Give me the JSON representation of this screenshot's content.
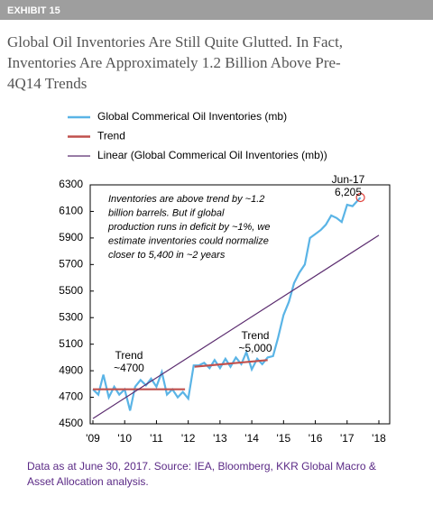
{
  "header": {
    "label": "EXHIBIT 15"
  },
  "chart_data": {
    "type": "line",
    "title": [
      "Global Oil Inventories Are Still Quite Glutted. In Fact,",
      "Inventories Are Approximately 1.2 Billion Above Pre-",
      "4Q14 Trends"
    ],
    "xlim": [
      2009,
      2018
    ],
    "xticks": [
      {
        "value": 2009,
        "label": "'09"
      },
      {
        "value": 2010,
        "label": "'10"
      },
      {
        "value": 2011,
        "label": "'11"
      },
      {
        "value": 2012,
        "label": "'12"
      },
      {
        "value": 2013,
        "label": "'13"
      },
      {
        "value": 2014,
        "label": "'14"
      },
      {
        "value": 2015,
        "label": "'15"
      },
      {
        "value": 2016,
        "label": "'16"
      },
      {
        "value": 2017,
        "label": "'17"
      },
      {
        "value": 2018,
        "label": "'18"
      }
    ],
    "ylim": [
      4500,
      6300
    ],
    "yticks": [
      4500,
      4700,
      4900,
      5100,
      5300,
      5500,
      5700,
      5900,
      6100,
      6300
    ],
    "grid": false,
    "series": [
      {
        "name": "Global Commerical Oil Inventories (mb)",
        "color": "#5ab4e6",
        "x": [
          2009.0,
          2009.17,
          2009.33,
          2009.5,
          2009.67,
          2009.83,
          2010.0,
          2010.17,
          2010.33,
          2010.5,
          2010.67,
          2010.83,
          2011.0,
          2011.17,
          2011.33,
          2011.5,
          2011.67,
          2011.83,
          2012.0,
          2012.17,
          2012.33,
          2012.5,
          2012.67,
          2012.83,
          2013.0,
          2013.17,
          2013.33,
          2013.5,
          2013.67,
          2013.83,
          2014.0,
          2014.17,
          2014.33,
          2014.5,
          2014.67,
          2014.83,
          2015.0,
          2015.17,
          2015.33,
          2015.5,
          2015.67,
          2015.83,
          2016.0,
          2016.17,
          2016.33,
          2016.5,
          2016.67,
          2016.83,
          2017.0,
          2017.17,
          2017.42
        ],
        "values": [
          4760,
          4720,
          4870,
          4700,
          4780,
          4720,
          4760,
          4600,
          4780,
          4830,
          4790,
          4840,
          4780,
          4890,
          4720,
          4760,
          4700,
          4740,
          4690,
          4940,
          4940,
          4960,
          4920,
          4980,
          4920,
          4990,
          4930,
          5000,
          4950,
          5040,
          4910,
          4990,
          4950,
          5000,
          5010,
          5150,
          5320,
          5420,
          5560,
          5640,
          5700,
          5900,
          5930,
          5960,
          6000,
          6070,
          6050,
          6020,
          6150,
          6140,
          6205
        ]
      },
      {
        "name": "Trend",
        "color": "#c0504d",
        "x": [
          2009.0,
          2011.9,
          2012.05,
          2012.2,
          2014.5
        ],
        "values": [
          4760,
          4760,
          null,
          4930,
          4980
        ]
      },
      {
        "name": "Linear (Global Commerical Oil Inventories (mb))",
        "color": "#5b2c6f",
        "x": [
          2009,
          2018
        ],
        "values": [
          4540,
          5920
        ]
      }
    ],
    "annotations": {
      "note": [
        "Inventories are above trend by ~1.2",
        "billion barrels. But if global",
        "production runs in deficit by ~1%, we",
        "estimate inventories could normalize",
        "closer to 5,400 in ~2 years"
      ],
      "last_date": "Jun-17",
      "last_value": "6,205",
      "trend1": [
        "Trend",
        "~4700"
      ],
      "trend2": [
        "Trend",
        "~5,000"
      ]
    }
  },
  "footer": [
    "Data as at June 30, 2017. Source: IEA, Bloomberg, KKR Global Macro &",
    "Asset Allocation analysis."
  ]
}
